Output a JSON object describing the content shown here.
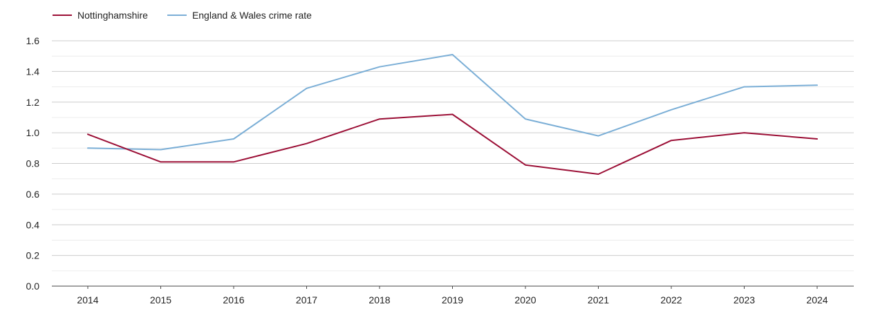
{
  "chart_data": {
    "type": "line",
    "title": "",
    "xlabel": "",
    "ylabel": "",
    "categories": [
      "2014",
      "2015",
      "2016",
      "2017",
      "2018",
      "2019",
      "2020",
      "2021",
      "2022",
      "2023",
      "2024"
    ],
    "series": [
      {
        "name": "Nottinghamshire",
        "color": "#9b0e35",
        "values": [
          0.99,
          0.81,
          0.81,
          0.93,
          1.09,
          1.12,
          0.79,
          0.73,
          0.95,
          1.0,
          0.96
        ]
      },
      {
        "name": "England & Wales crime rate",
        "color": "#7aaed6",
        "values": [
          0.9,
          0.89,
          0.96,
          1.29,
          1.43,
          1.51,
          1.09,
          0.98,
          1.15,
          1.3,
          1.31
        ]
      }
    ],
    "ylim": [
      0,
      1.6
    ],
    "yticks": [
      "0.0",
      "0.2",
      "0.4",
      "0.6",
      "0.8",
      "1.0",
      "1.2",
      "1.4",
      "1.6"
    ],
    "grid": true,
    "legend_position": "top-left"
  }
}
